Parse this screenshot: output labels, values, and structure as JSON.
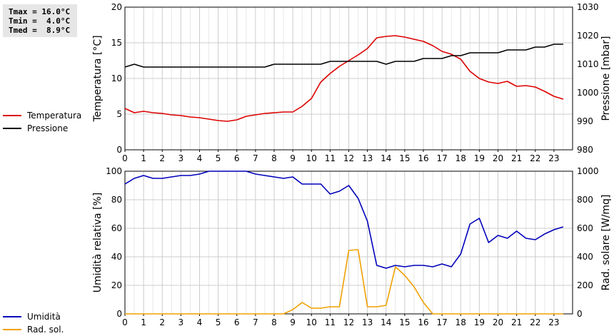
{
  "stats": {
    "tmax": "Tmax = 16.0°C",
    "tmin": "Tmin =  4.0°C",
    "tmed": "Tmed =  8.9°C"
  },
  "legend_top": [
    {
      "label": "Temperatura",
      "color": "#dd0000"
    },
    {
      "label": "Pressione",
      "color": "#000000"
    }
  ],
  "legend_bottom": [
    {
      "label": "Umidità",
      "color": "#0000bb"
    },
    {
      "label": "Rad. sol.",
      "color": "#f0a000"
    }
  ],
  "chart_data": [
    {
      "type": "line",
      "ylabel": "Temperatura [°C]",
      "y2label": "Pressione [mbar]",
      "xlim": [
        0,
        24
      ],
      "ylim": [
        0,
        20
      ],
      "y2lim": [
        980,
        1030
      ],
      "x_ticks": [
        0,
        1,
        2,
        3,
        4,
        5,
        6,
        7,
        8,
        9,
        10,
        11,
        12,
        13,
        14,
        15,
        16,
        17,
        18,
        19,
        20,
        21,
        22,
        23
      ],
      "y_ticks": [
        0,
        5,
        10,
        15,
        20
      ],
      "y2_ticks": [
        980,
        990,
        1000,
        1010,
        1020,
        1030
      ],
      "grid": true,
      "series": [
        {
          "name": "Temperatura",
          "axis": "left",
          "color": "#dd0000",
          "x": [
            0,
            0.5,
            1,
            1.5,
            2,
            2.5,
            3,
            3.5,
            4,
            4.5,
            5,
            5.5,
            6,
            6.5,
            7,
            7.5,
            8,
            8.5,
            9,
            9.5,
            10,
            10.5,
            11,
            11.5,
            12,
            12.5,
            13,
            13.5,
            14,
            14.5,
            15,
            15.5,
            16,
            16.5,
            17,
            17.5,
            18,
            18.5,
            19,
            19.5,
            20,
            20.5,
            21,
            21.5,
            22,
            22.5,
            23,
            23.5
          ],
          "y": [
            5.8,
            5.2,
            5.4,
            5.2,
            5.1,
            4.9,
            4.8,
            4.6,
            4.5,
            4.3,
            4.1,
            4.0,
            4.2,
            4.7,
            4.9,
            5.1,
            5.2,
            5.3,
            5.3,
            6.1,
            7.2,
            9.5,
            10.7,
            11.7,
            12.5,
            13.3,
            14.2,
            15.7,
            15.9,
            16.0,
            15.8,
            15.5,
            15.2,
            14.6,
            13.8,
            13.4,
            12.7,
            11.0,
            10.0,
            9.5,
            9.3,
            9.6,
            8.9,
            9.0,
            8.8,
            8.2,
            7.5,
            7.1
          ]
        },
        {
          "name": "Pressione",
          "axis": "right",
          "color": "#000000",
          "x": [
            0,
            0.5,
            1,
            1.5,
            2,
            2.5,
            3,
            3.5,
            4,
            4.5,
            5,
            5.5,
            6,
            6.5,
            7,
            7.5,
            8,
            8.5,
            9,
            9.5,
            10,
            10.5,
            11,
            11.5,
            12,
            12.5,
            13,
            13.5,
            14,
            14.5,
            15,
            15.5,
            16,
            16.5,
            17,
            17.5,
            18,
            18.5,
            19,
            19.5,
            20,
            20.5,
            21,
            21.5,
            22,
            22.5,
            23,
            23.5
          ],
          "y": [
            1009,
            1010,
            1009,
            1009,
            1009,
            1009,
            1009,
            1009,
            1009,
            1009,
            1009,
            1009,
            1009,
            1009,
            1009,
            1009,
            1010,
            1010,
            1010,
            1010,
            1010,
            1010,
            1011,
            1011,
            1011,
            1011,
            1011,
            1011,
            1010,
            1011,
            1011,
            1011,
            1012,
            1012,
            1012,
            1013,
            1013,
            1014,
            1014,
            1014,
            1014,
            1015,
            1015,
            1015,
            1016,
            1016,
            1017,
            1017
          ]
        }
      ]
    },
    {
      "type": "line",
      "ylabel": "Umidità relativa [%]",
      "y2label": "Rad. solare [W/mq]",
      "xlim": [
        0,
        24
      ],
      "ylim": [
        0,
        100
      ],
      "y2lim": [
        0,
        1000
      ],
      "x_ticks": [
        0,
        1,
        2,
        3,
        4,
        5,
        6,
        7,
        8,
        9,
        10,
        11,
        12,
        13,
        14,
        15,
        16,
        17,
        18,
        19,
        20,
        21,
        22,
        23
      ],
      "y_ticks": [
        0,
        20,
        40,
        60,
        80,
        100
      ],
      "y2_ticks": [
        0,
        200,
        400,
        600,
        800,
        1000
      ],
      "grid": true,
      "series": [
        {
          "name": "Umidità",
          "axis": "left",
          "color": "#0000bb",
          "x": [
            0,
            0.5,
            1,
            1.5,
            2,
            2.5,
            3,
            3.5,
            4,
            4.5,
            5,
            5.5,
            6,
            6.5,
            7,
            7.5,
            8,
            8.5,
            9,
            9.5,
            10,
            10.5,
            11,
            11.5,
            12,
            12.5,
            13,
            13.5,
            14,
            14.5,
            15,
            15.5,
            16,
            16.5,
            17,
            17.5,
            18,
            18.5,
            19,
            19.5,
            20,
            20.5,
            21,
            21.5,
            22,
            22.5,
            23,
            23.5
          ],
          "y": [
            91,
            95,
            97,
            95,
            95,
            96,
            97,
            97,
            98,
            100,
            100,
            100,
            100,
            100,
            98,
            97,
            96,
            95,
            96,
            91,
            91,
            91,
            84,
            86,
            90,
            81,
            65,
            34,
            32,
            34,
            33,
            34,
            34,
            33,
            35,
            33,
            42,
            63,
            67,
            50,
            55,
            53,
            58,
            53,
            52,
            56,
            59,
            61
          ]
        },
        {
          "name": "Rad. sol.",
          "axis": "right",
          "color": "#f0a000",
          "x": [
            0,
            0.5,
            1,
            1.5,
            2,
            2.5,
            3,
            3.5,
            4,
            4.5,
            5,
            5.5,
            6,
            6.5,
            7,
            7.5,
            8,
            8.5,
            9,
            9.5,
            10,
            10.5,
            11,
            11.5,
            12,
            12.5,
            13,
            13.5,
            14,
            14.5,
            15,
            15.5,
            16,
            16.5,
            17,
            17.5,
            18,
            18.5,
            19,
            19.5,
            20,
            20.5,
            21,
            21.5,
            22,
            22.5,
            23,
            23.5
          ],
          "y": [
            0,
            0,
            0,
            0,
            0,
            0,
            0,
            0,
            0,
            0,
            0,
            0,
            0,
            0,
            0,
            0,
            0,
            0,
            30,
            80,
            40,
            40,
            50,
            50,
            445,
            450,
            50,
            50,
            60,
            330,
            270,
            190,
            80,
            0,
            0,
            0,
            0,
            0,
            0,
            0,
            0,
            0,
            0,
            0,
            0,
            0,
            0,
            0
          ]
        }
      ]
    }
  ]
}
